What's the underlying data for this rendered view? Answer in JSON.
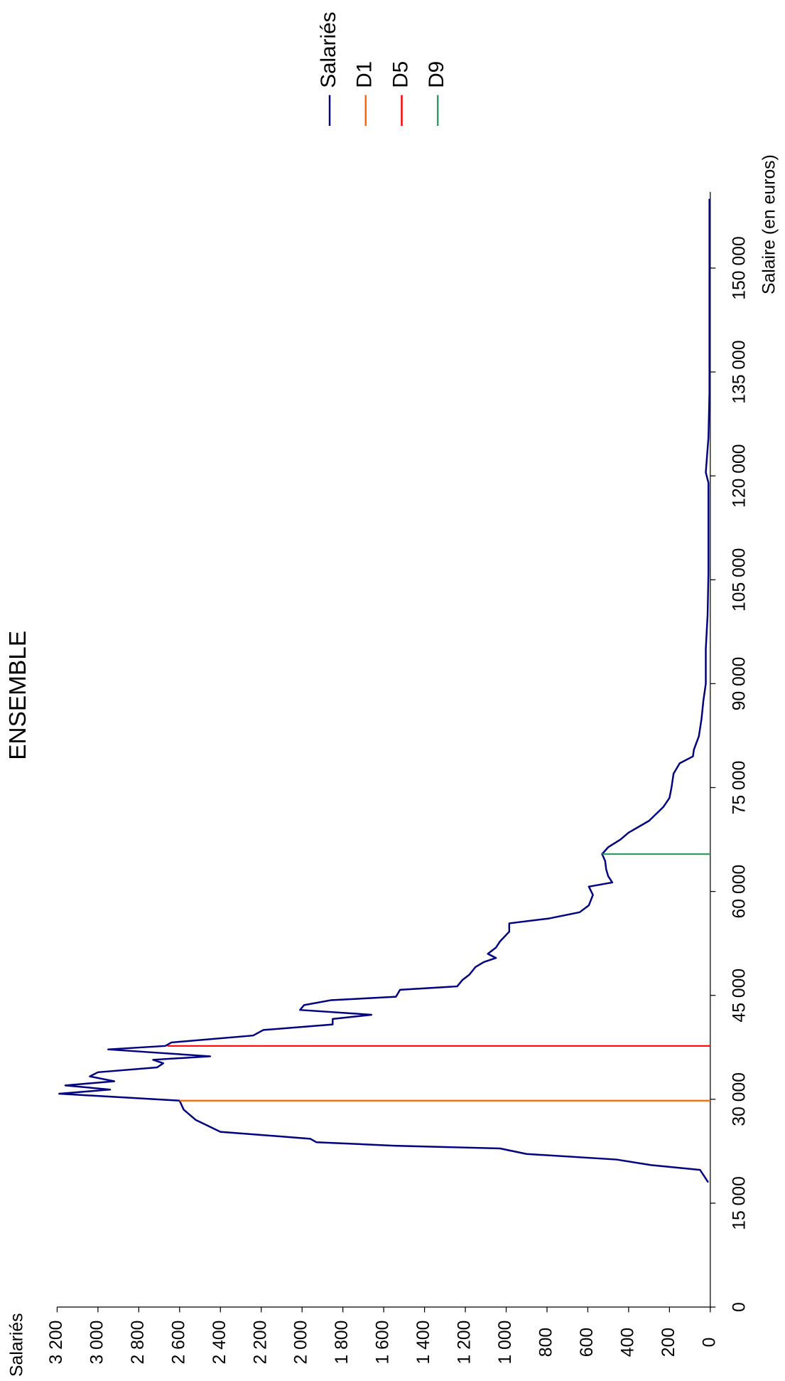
{
  "chart_data": {
    "type": "line",
    "title": "ENSEMBLE",
    "x_label": "Salaire (en euros)",
    "y_label": "Salariés",
    "xlim": [
      0,
      161000
    ],
    "ylim": [
      0,
      3200
    ],
    "xticks": [
      0,
      {
        "value": 15000,
        "label": "15 000"
      },
      {
        "value": 30000,
        "label": "30 000"
      },
      {
        "value": 45000,
        "label": "45 000"
      },
      {
        "value": 60000,
        "label": "60 000"
      },
      {
        "value": 75000,
        "label": "75 000"
      },
      {
        "value": 90000,
        "label": "90 000"
      },
      {
        "value": 105000,
        "label": "105 000"
      },
      {
        "value": 120000,
        "label": "120 000"
      },
      {
        "value": 135000,
        "label": "135 000"
      },
      {
        "value": 150000,
        "label": "150 000"
      }
    ],
    "yticks": [
      0,
      200,
      400,
      600,
      800,
      {
        "value": 1000,
        "label": "1 000"
      },
      {
        "value": 1200,
        "label": "1 200"
      },
      {
        "value": 1400,
        "label": "1 400"
      },
      {
        "value": 1600,
        "label": "1 600"
      },
      {
        "value": 1800,
        "label": "1 800"
      },
      {
        "value": 2000,
        "label": "2 000"
      },
      {
        "value": 2200,
        "label": "2 200"
      },
      {
        "value": 2400,
        "label": "2 400"
      },
      {
        "value": 2600,
        "label": "2 600"
      },
      {
        "value": 2800,
        "label": "2 800"
      },
      {
        "value": 3000,
        "label": "3 000"
      },
      {
        "value": 3200,
        "label": "3 200"
      }
    ],
    "legend": "top-right",
    "series": [
      {
        "name": "Salariés",
        "color": "#000080",
        "x": [
          18000,
          19800,
          20500,
          21300,
          22100,
          22900,
          23300,
          23800,
          24300,
          25300,
          27000,
          28500,
          29800,
          30800,
          31400,
          32000,
          32600,
          33300,
          33900,
          34600,
          35200,
          35700,
          36200,
          36700,
          37200,
          37700,
          38200,
          39200,
          40000,
          40800,
          41600,
          42200,
          42900,
          43600,
          44300,
          44800,
          45800,
          46300,
          47200,
          48000,
          49100,
          49800,
          50400,
          51000,
          51900,
          52800,
          54200,
          55400,
          56100,
          57000,
          58000,
          59500,
          60700,
          61300,
          62200,
          63200,
          64400,
          65400,
          66400,
          67500,
          68500,
          70200,
          72200,
          73500,
          75000,
          77000,
          78500,
          79500,
          80500,
          82400,
          84900,
          87500,
          90000,
          95000,
          100000,
          106000,
          113000,
          119000,
          120500,
          125500,
          132000,
          141000,
          151000,
          160000
        ],
        "values": [
          10,
          50,
          290,
          460,
          900,
          1030,
          1550,
          1930,
          1960,
          2400,
          2520,
          2580,
          2600,
          3190,
          2940,
          3160,
          2920,
          3040,
          3000,
          2710,
          2680,
          2730,
          2450,
          2700,
          2950,
          2670,
          2640,
          2240,
          2190,
          1850,
          1850,
          1660,
          2010,
          1990,
          1860,
          1540,
          1520,
          1240,
          1215,
          1180,
          1150,
          1110,
          1050,
          1090,
          1050,
          1030,
          985,
          985,
          790,
          640,
          595,
          575,
          595,
          480,
          500,
          510,
          515,
          530,
          500,
          440,
          400,
          300,
          230,
          200,
          190,
          180,
          150,
          85,
          80,
          56,
          43,
          34,
          22,
          22,
          13,
          9,
          9,
          9,
          22,
          9,
          4,
          4,
          4,
          4
        ]
      },
      {
        "name": "D1",
        "color": "#ff6600",
        "x": [
          29800,
          29800
        ],
        "values": [
          0,
          2600
        ]
      },
      {
        "name": "D5",
        "color": "#ff0000",
        "x": [
          37700,
          37700
        ],
        "values": [
          0,
          2660
        ]
      },
      {
        "name": "D9",
        "color": "#339966",
        "x": [
          65400,
          65400
        ],
        "values": [
          0,
          530
        ]
      }
    ]
  }
}
